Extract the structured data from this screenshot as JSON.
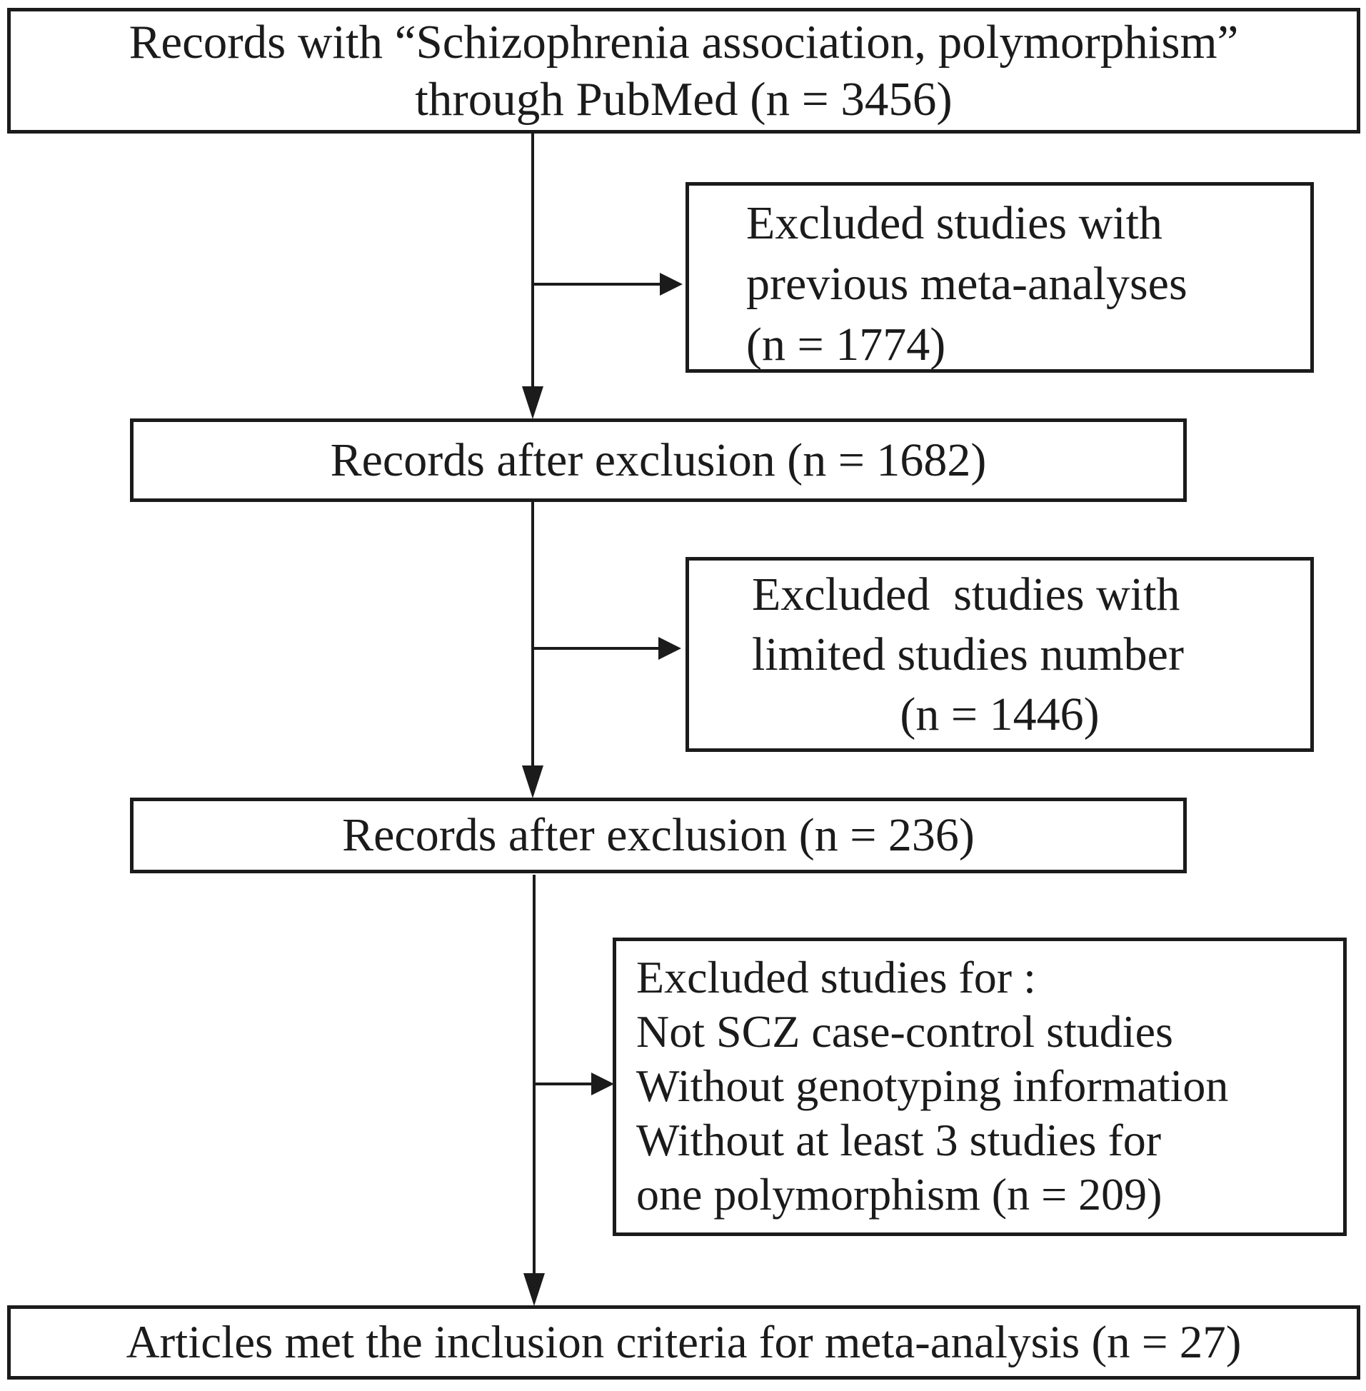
{
  "diagram": {
    "boxes": {
      "pubmed_records": {
        "lines": [
          "Records with “Schizophrenia association, polymorphism”",
          "through PubMed (n = 3456)"
        ]
      },
      "excluded_meta_analyses": {
        "lines": [
          "Excluded studies with",
          "previous meta-analyses",
          "(n = 1774)"
        ]
      },
      "records_after_exclusion_1": {
        "text": "Records after exclusion (n = 1682)"
      },
      "excluded_limited_studies": {
        "lines": [
          "Excluded  studies with",
          "limited studies number",
          "(n = 1446)"
        ]
      },
      "records_after_exclusion_2": {
        "text": "Records after exclusion (n = 236)"
      },
      "excluded_criteria": {
        "lines": [
          "Excluded studies for :",
          "Not SCZ case-control studies",
          "Without genotyping information",
          "Without at least 3 studies for",
          "one polymorphism (n = 209)"
        ]
      },
      "included_articles": {
        "text": "Articles met the inclusion criteria for meta-analysis (n = 27)"
      }
    },
    "colors": {
      "line": "#1b1b1b",
      "text": "#1b1b1b",
      "background": "#ffffff"
    }
  }
}
